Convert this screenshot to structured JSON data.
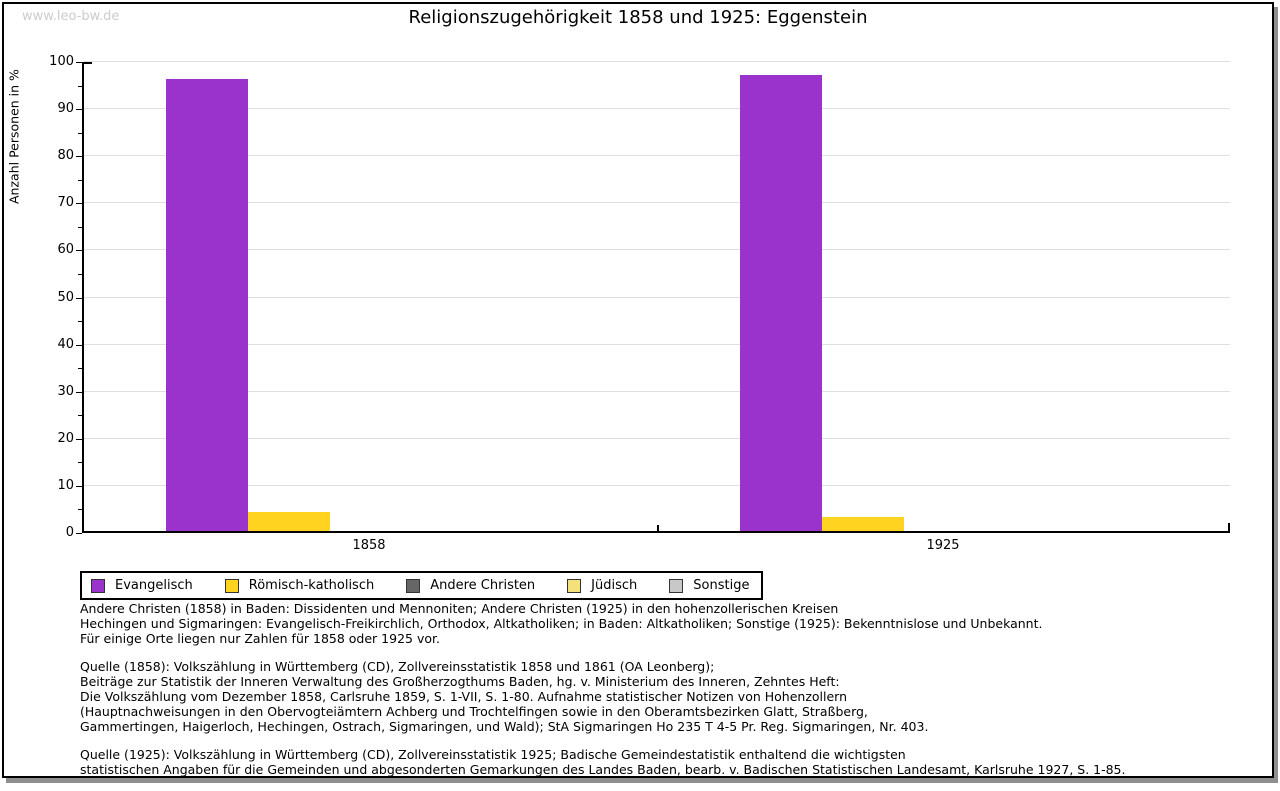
{
  "watermark": "www.leo-bw.de",
  "title": "Religionszugehörigkeit 1858 und 1925: Eggenstein",
  "chart_data": {
    "type": "bar",
    "title": "Religionszugehörigkeit 1858 und 1925: Eggenstein",
    "xlabel": "",
    "ylabel": "Anzahl Personen in %",
    "ylim": [
      0,
      100
    ],
    "ytick_step": 10,
    "minor_tick_step": 5,
    "grid": true,
    "legend_position": "bottom",
    "categories": [
      "1858",
      "1925"
    ],
    "series": [
      {
        "name": "Evangelisch",
        "color": "#9933cc",
        "values": [
          96.0,
          96.8
        ]
      },
      {
        "name": "Römisch-katholisch",
        "color": "#ffd320",
        "values": [
          4.0,
          3.0
        ]
      },
      {
        "name": "Andere Christen",
        "color": "#666666",
        "values": [
          0,
          0
        ]
      },
      {
        "name": "Jüdisch",
        "color": "#f5e17c",
        "values": [
          0,
          0
        ]
      },
      {
        "name": "Sonstige",
        "color": "#c8c8c8",
        "values": [
          0,
          0
        ]
      }
    ]
  },
  "notes": [
    "Andere Christen (1858) in Baden: Dissidenten und Mennoniten; Andere Christen (1925) in den hohenzollerischen Kreisen\nHechingen und Sigmaringen: Evangelisch-Freikirchlich, Orthodox, Altkatholiken; in Baden: Altkatholiken; Sonstige (1925): Bekenntnislose und Unbekannt.\nFür einige Orte liegen nur Zahlen für 1858 oder 1925 vor.",
    "Quelle (1858): Volkszählung in Württemberg (CD), Zollvereinsstatistik 1858 und 1861 (OA Leonberg);\nBeiträge zur Statistik der Inneren Verwaltung des Großherzogthums Baden, hg. v. Ministerium des Inneren, Zehntes Heft:\nDie Volkszählung vom Dezember 1858, Carlsruhe 1859, S. 1-VII, S. 1-80. Aufnahme statistischer Notizen von Hohenzollern\n(Hauptnachweisungen in den Obervogteiämtern Achberg und Trochtelfingen sowie in den Oberamtsbezirken Glatt, Straßberg,\nGammertingen, Haigerloch, Hechingen, Ostrach, Sigmaringen, und Wald); StA Sigmaringen Ho 235 T 4-5 Pr. Reg. Sigmaringen, Nr. 403.",
    "Quelle (1925): Volkszählung in Württemberg (CD), Zollvereinsstatistik 1925; Badische Gemeindestatistik enthaltend die wichtigsten\nstatistischen Angaben für die Gemeinden und abgesonderten Gemarkungen des Landes Baden, bearb. v. Badischen Statistischen Landesamt, Karlsruhe 1927, S. 1-85."
  ]
}
